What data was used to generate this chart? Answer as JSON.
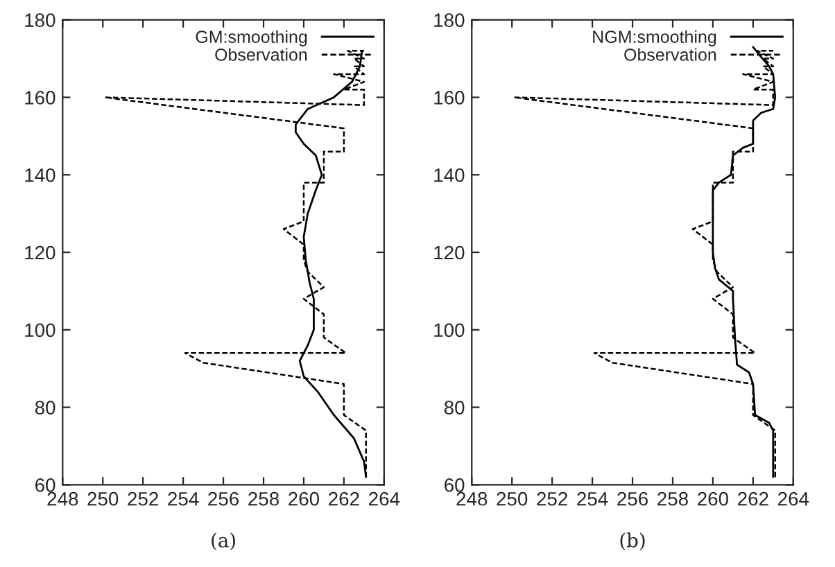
{
  "chart_data": [
    {
      "type": "line",
      "xlabel": "(a)",
      "xlim": [
        248,
        264
      ],
      "ylim": [
        60,
        180
      ],
      "xticks": [
        248,
        250,
        252,
        254,
        256,
        258,
        260,
        262,
        264
      ],
      "yticks": [
        60,
        80,
        100,
        120,
        140,
        160,
        180
      ],
      "legend": "top right",
      "grid": false,
      "series": [
        {
          "name": "GM:smoothing",
          "color": "#000000",
          "line_style": "solid",
          "x": [
            263.1,
            263,
            262.5,
            261.5,
            260.7,
            260,
            259.8,
            260.2,
            260.5,
            260.5,
            260.3,
            260.1,
            260,
            260.2,
            260.6,
            260.9,
            260.6,
            260,
            259.6,
            259.6,
            260.2,
            261.5,
            262.4,
            262.8,
            262.9
          ],
          "values": [
            62,
            66,
            72,
            78,
            84,
            88,
            92,
            96,
            100,
            108,
            112,
            118,
            124,
            130,
            136,
            140,
            145,
            148,
            151,
            153,
            157,
            160,
            164,
            168,
            172
          ]
        },
        {
          "name": "Observation",
          "color": "#000000",
          "line_style": "dashed",
          "x": [
            263.1,
            263.1,
            262,
            262,
            255,
            254.1,
            262.1,
            261,
            261,
            260,
            261,
            260.2,
            260,
            260,
            259,
            260,
            260,
            261,
            261,
            262,
            262,
            250.1,
            263,
            263,
            262,
            263,
            261.5,
            263,
            262.5,
            263,
            262.5,
            263,
            262.2,
            263
          ],
          "values": [
            62,
            74,
            78,
            86,
            91.5,
            94,
            94,
            98,
            104,
            108,
            111,
            115,
            118,
            122,
            126,
            128,
            138,
            138,
            146,
            146,
            152,
            160,
            158,
            162,
            162,
            164,
            166,
            166,
            168,
            168,
            170,
            170,
            172,
            172
          ]
        }
      ]
    },
    {
      "type": "line",
      "xlabel": "(b)",
      "xlim": [
        248,
        264
      ],
      "ylim": [
        60,
        180
      ],
      "xticks": [
        248,
        250,
        252,
        254,
        256,
        258,
        260,
        262,
        264
      ],
      "yticks": [
        60,
        80,
        100,
        120,
        140,
        160,
        180
      ],
      "legend": "top right",
      "grid": false,
      "series": [
        {
          "name": "NGM:smoothing",
          "color": "#000000",
          "line_style": "solid",
          "x": [
            263,
            263,
            262.8,
            262.1,
            262,
            261.8,
            261.2,
            261.1,
            261,
            261,
            260.3,
            260.1,
            260,
            260,
            260.3,
            260.9,
            261,
            261.5,
            262,
            262,
            262.4,
            263,
            263.1,
            263,
            262.8,
            262.3,
            262
          ],
          "values": [
            62,
            74,
            76,
            78,
            86,
            89,
            91,
            98,
            108,
            110,
            113,
            116,
            120,
            136,
            138,
            140,
            145,
            147,
            148,
            154,
            156,
            157,
            160,
            166,
            168,
            171,
            173
          ]
        },
        {
          "name": "Observation",
          "color": "#000000",
          "line_style": "dashed",
          "x": [
            263.1,
            263.1,
            262,
            262,
            255,
            254.1,
            262.1,
            261,
            261,
            260,
            261,
            260.2,
            260,
            260,
            259,
            260,
            260,
            261,
            261,
            262,
            262,
            250.1,
            263,
            263,
            262,
            263,
            261.5,
            263,
            262.5,
            263,
            262.5,
            263,
            262.2,
            263
          ],
          "values": [
            62,
            74,
            78,
            86,
            91.5,
            94,
            94,
            98,
            104,
            108,
            111,
            115,
            118,
            122,
            126,
            128,
            138,
            138,
            146,
            146,
            152,
            160,
            158,
            162,
            162,
            164,
            166,
            166,
            168,
            168,
            170,
            170,
            172,
            172
          ]
        }
      ]
    }
  ]
}
